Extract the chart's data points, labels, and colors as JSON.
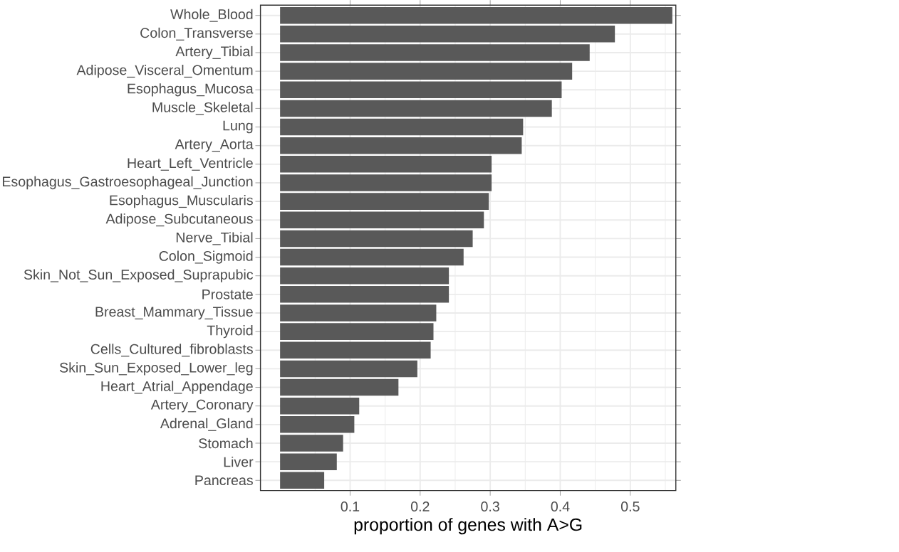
{
  "chart_data": {
    "type": "bar",
    "orientation": "horizontal",
    "xlabel": "proportion of genes with A>G",
    "categories": [
      "Whole_Blood",
      "Colon_Transverse",
      "Artery_Tibial",
      "Adipose_Visceral_Omentum",
      "Esophagus_Mucosa",
      "Muscle_Skeletal",
      "Lung",
      "Artery_Aorta",
      "Heart_Left_Ventricle",
      "Esophagus_Gastroesophageal_Junction",
      "Esophagus_Muscularis",
      "Adipose_Subcutaneous",
      "Nerve_Tibial",
      "Colon_Sigmoid",
      "Skin_Not_Sun_Exposed_Suprapubic",
      "Prostate",
      "Breast_Mammary_Tissue",
      "Thyroid",
      "Cells_Cultured_fibroblasts",
      "Skin_Sun_Exposed_Lower_leg",
      "Heart_Atrial_Appendage",
      "Artery_Coronary",
      "Adrenal_Gland",
      "Stomach",
      "Liver",
      "Pancreas"
    ],
    "values": [
      0.56,
      0.478,
      0.442,
      0.417,
      0.402,
      0.388,
      0.347,
      0.345,
      0.302,
      0.302,
      0.298,
      0.291,
      0.275,
      0.262,
      0.241,
      0.241,
      0.223,
      0.219,
      0.215,
      0.196,
      0.169,
      0.113,
      0.106,
      0.09,
      0.081,
      0.063
    ],
    "color": "#595959",
    "xlim": [
      -0.028,
      0.565
    ],
    "xticks": [
      0.1,
      0.2,
      0.3,
      0.4,
      0.5
    ],
    "grid": true
  }
}
